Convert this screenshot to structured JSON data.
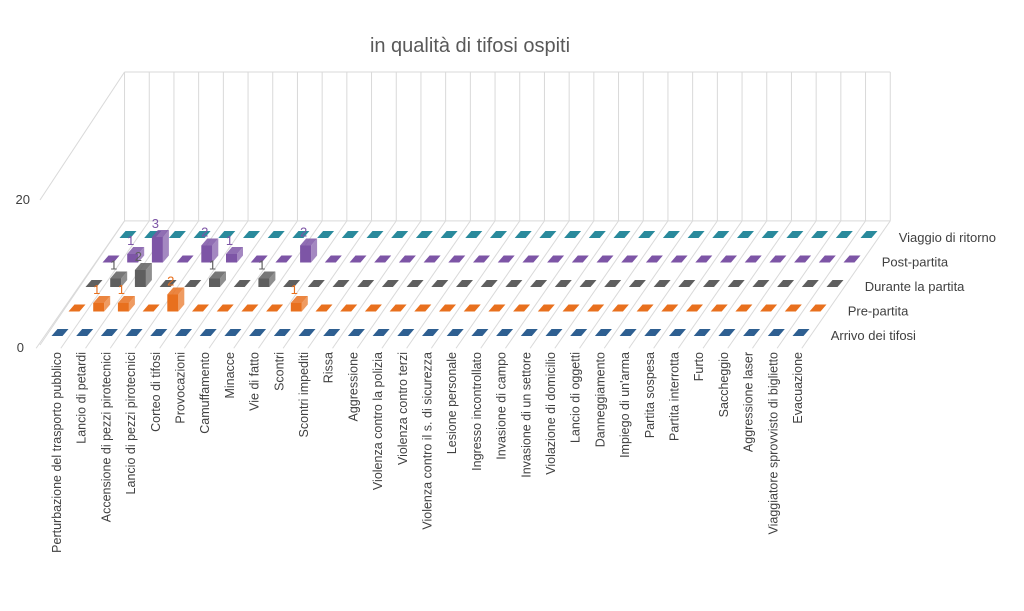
{
  "chart_data": {
    "type": "bar",
    "subtype": "3d-bar",
    "title": "in qualità di tifosi ospiti",
    "ylim": [
      0,
      20
    ],
    "yticks": [
      "0",
      "20"
    ],
    "categories": [
      "Perturbazione del trasporto pubblico",
      "Lancio di petardi",
      "Accensione di pezzi pirotecnici",
      "Lancio di pezzi pirotecnici",
      "Corteo di tifosi",
      "Provocazioni",
      "Camuffamento",
      "Minacce",
      "Vie di fatto",
      "Scontri",
      "Scontri impediti",
      "Rissa",
      "Aggressione",
      "Violenza contro la polizia",
      "Violenza contro terzi",
      "Violenza contro il s. di sicurezza",
      "Lesione personale",
      "Ingresso incontrollato",
      "Invasione di campo",
      "Invasione di un settore",
      "Violazione di domicilio",
      "Lancio di oggetti",
      "Danneggiamento",
      "Impiego di un'arma",
      "Partita sospesa",
      "Partita interrotta",
      "Furto",
      "Saccheggio",
      "Aggressione laser",
      "Viaggiatore sprovvisto di biglietto",
      "Evacuazione"
    ],
    "series": [
      {
        "name": "Arrivo dei tifosi",
        "color": "#2e5f91",
        "values": [
          0,
          0,
          0,
          0,
          0,
          0,
          0,
          0,
          0,
          0,
          0,
          0,
          0,
          0,
          0,
          0,
          0,
          0,
          0,
          0,
          0,
          0,
          0,
          0,
          0,
          0,
          0,
          0,
          0,
          0,
          0
        ]
      },
      {
        "name": "Pre-partita",
        "color": "#e8701e",
        "values": [
          0,
          1,
          1,
          0,
          2,
          0,
          0,
          0,
          0,
          1,
          0,
          0,
          0,
          0,
          0,
          0,
          0,
          0,
          0,
          0,
          0,
          0,
          0,
          0,
          0,
          0,
          0,
          0,
          0,
          0,
          0
        ]
      },
      {
        "name": "Durante la partita",
        "color": "#5f5f5f",
        "values": [
          0,
          1,
          2,
          0,
          0,
          1,
          0,
          1,
          0,
          0,
          0,
          0,
          0,
          0,
          0,
          0,
          0,
          0,
          0,
          0,
          0,
          0,
          0,
          0,
          0,
          0,
          0,
          0,
          0,
          0,
          0
        ]
      },
      {
        "name": "Post-partita",
        "color": "#7d55a6",
        "values": [
          0,
          1,
          3,
          0,
          2,
          1,
          0,
          0,
          2,
          0,
          0,
          0,
          0,
          0,
          0,
          0,
          0,
          0,
          0,
          0,
          0,
          0,
          0,
          0,
          0,
          0,
          0,
          0,
          0,
          0,
          0
        ]
      },
      {
        "name": "Viaggio di ritorno",
        "color": "#2a8a9c",
        "values": [
          0,
          0,
          0,
          0,
          0,
          0,
          0,
          0,
          0,
          0,
          0,
          0,
          0,
          0,
          0,
          0,
          0,
          0,
          0,
          0,
          0,
          0,
          0,
          0,
          0,
          0,
          0,
          0,
          0,
          0,
          0
        ]
      }
    ],
    "grid": true
  }
}
